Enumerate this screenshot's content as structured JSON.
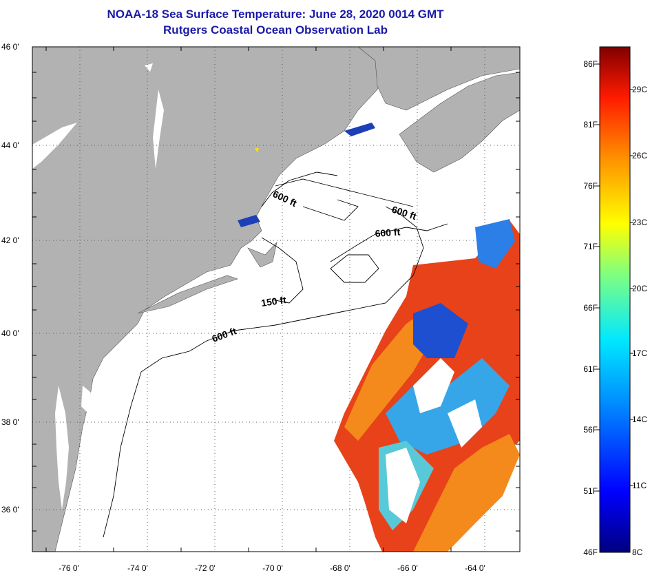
{
  "title": {
    "line1": "NOAA-18 Sea Surface Temperature:  June 28, 2020 0014 GMT",
    "line2": "Rutgers Coastal Ocean Observation Lab"
  },
  "axes": {
    "latitude_labels": [
      "46 0'",
      "44 0'",
      "42 0'",
      "40 0'",
      "38 0'",
      "36 0'"
    ],
    "longitude_labels": [
      "-76 0'",
      "-74 0'",
      "-72 0'",
      "-70 0'",
      "-68 0'",
      "-66 0'",
      "-64 0'"
    ]
  },
  "contours": {
    "labels": [
      "600 ft",
      "600 ft",
      "600 ft",
      "150 ft",
      "600 ft"
    ]
  },
  "colorbar": {
    "fahrenheit": [
      "86F",
      "81F",
      "76F",
      "71F",
      "66F",
      "61F",
      "56F",
      "51F",
      "46F"
    ],
    "celsius": [
      "29C",
      "26C",
      "23C",
      "20C",
      "17C",
      "14C",
      "11C",
      "8C"
    ]
  },
  "colors": {
    "land": "#b2b2b2",
    "title": "#1a1aa8",
    "warm": "#e8421a",
    "cool": "#2b7fe6"
  }
}
